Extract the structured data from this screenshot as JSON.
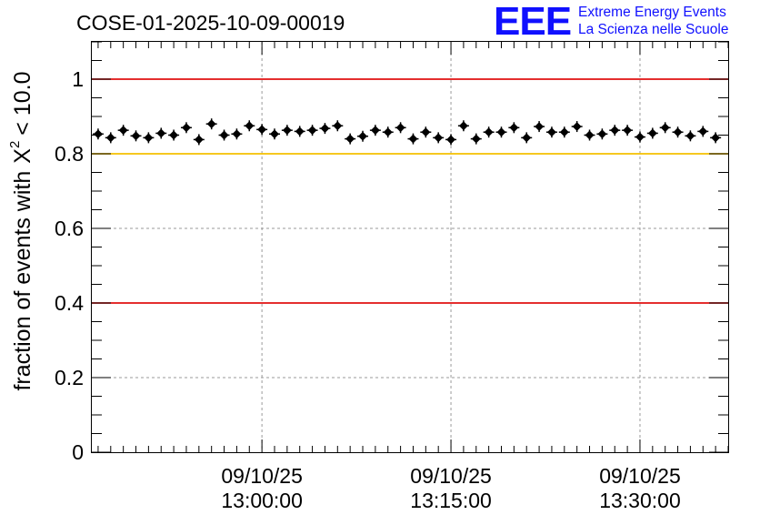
{
  "chart_data": {
    "type": "scatter",
    "title": "COSE-01-2025-10-09-00019",
    "ylabel_prefix": "fraction of events with",
    "ylabel_symbol": "X",
    "ylabel_superscript": "2",
    "ylabel_suffix": "< 10.0",
    "xlabel": "",
    "xlim": [
      0,
      50.5
    ],
    "ylim": [
      0,
      1.1
    ],
    "y_ticks": [
      0,
      0.2,
      0.4,
      0.6,
      0.8,
      1
    ],
    "y_tick_labels": [
      "0",
      "0.2",
      "0.4",
      "0.6",
      "0.8",
      "1"
    ],
    "x_ticks": [
      {
        "x": 13.5,
        "date": "09/10/25",
        "time": "13:00:00"
      },
      {
        "x": 28.5,
        "date": "09/10/25",
        "time": "13:15:00"
      },
      {
        "x": 43.5,
        "date": "09/10/25",
        "time": "13:30:00"
      }
    ],
    "grid": true,
    "reference_lines": [
      {
        "y": 1.0,
        "color": "#e01010"
      },
      {
        "y": 0.8,
        "color": "#f5c000"
      },
      {
        "y": 0.4,
        "color": "#e01010"
      }
    ],
    "series": [
      {
        "name": "fraction",
        "x": [
          0.5,
          1.5,
          2.5,
          3.5,
          4.5,
          5.5,
          6.5,
          7.5,
          8.5,
          9.5,
          10.5,
          11.5,
          12.5,
          13.5,
          14.5,
          15.5,
          16.5,
          17.5,
          18.5,
          19.5,
          20.5,
          21.5,
          22.5,
          23.5,
          24.5,
          25.5,
          26.5,
          27.5,
          28.5,
          29.5,
          30.5,
          31.5,
          32.5,
          33.5,
          34.5,
          35.5,
          36.5,
          37.5,
          38.5,
          39.5,
          40.5,
          41.5,
          42.5,
          43.5,
          44.5,
          45.5,
          46.5,
          47.5,
          48.5,
          49.5
        ],
        "y": [
          0.853,
          0.843,
          0.863,
          0.848,
          0.843,
          0.855,
          0.85,
          0.87,
          0.838,
          0.88,
          0.85,
          0.853,
          0.875,
          0.865,
          0.853,
          0.863,
          0.86,
          0.863,
          0.868,
          0.875,
          0.84,
          0.847,
          0.863,
          0.858,
          0.87,
          0.84,
          0.858,
          0.843,
          0.838,
          0.875,
          0.84,
          0.858,
          0.858,
          0.87,
          0.843,
          0.873,
          0.858,
          0.858,
          0.873,
          0.85,
          0.853,
          0.863,
          0.863,
          0.845,
          0.855,
          0.87,
          0.858,
          0.848,
          0.86,
          0.843
        ]
      }
    ]
  },
  "logo": {
    "mark": "EEE",
    "line1": "Extreme Energy Events",
    "line2": "La Scienza nelle Scuole",
    "color": "#1010ff"
  }
}
